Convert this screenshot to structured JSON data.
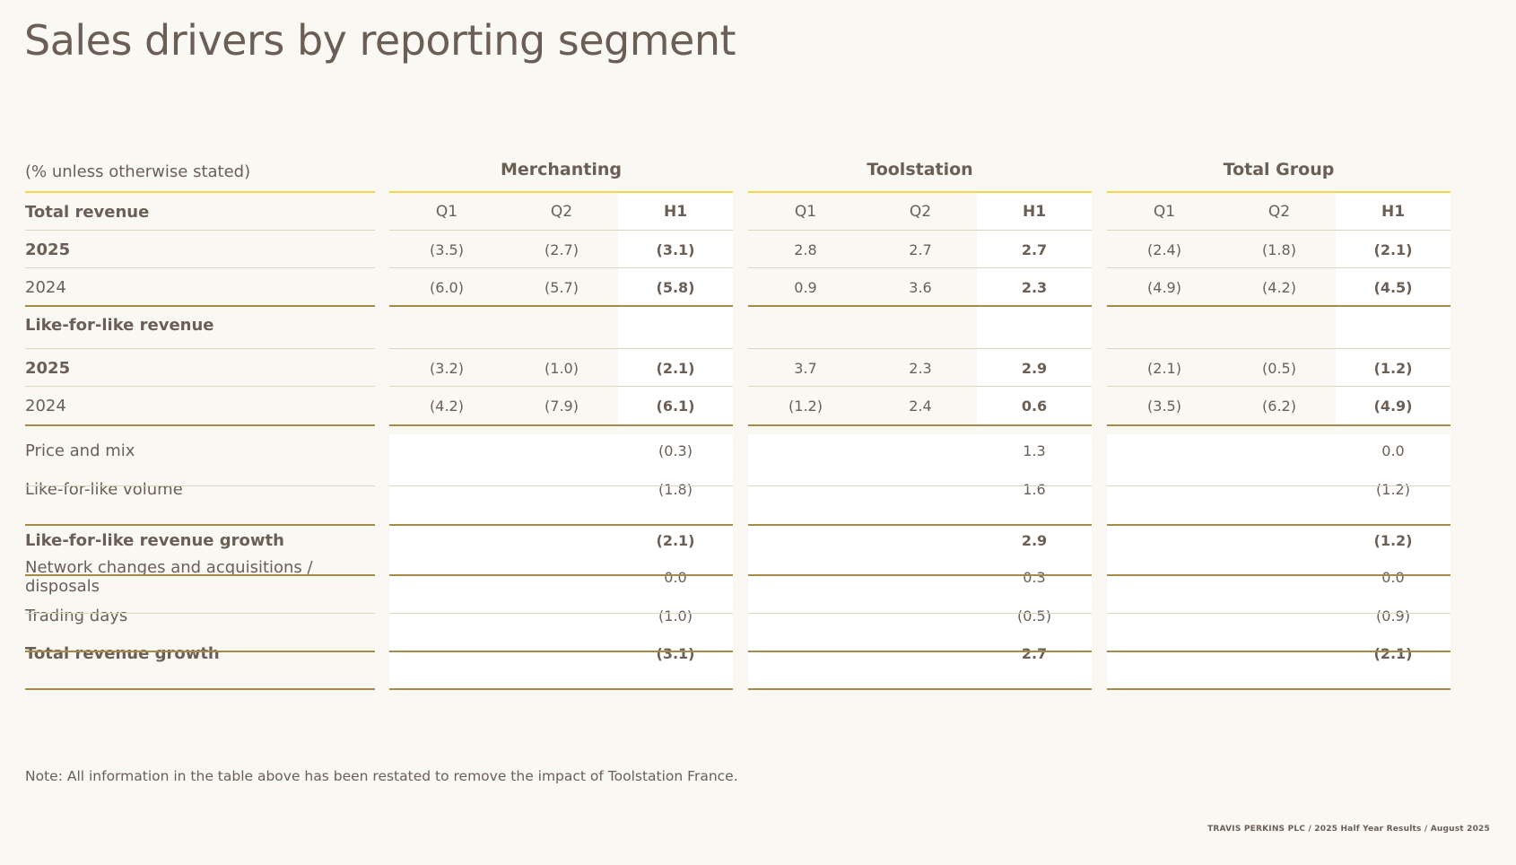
{
  "title": "Sales drivers by reporting segment",
  "units_note": "(% unless otherwise stated)",
  "segments": [
    "Merchanting",
    "Toolstation",
    "Total Group"
  ],
  "periods": [
    "Q1",
    "Q2",
    "H1"
  ],
  "rows": [
    {
      "label": "Total revenue",
      "bold": true,
      "values": [
        "Q1",
        "Q2",
        "H1",
        "Q1",
        "Q2",
        "H1",
        "Q1",
        "Q2",
        "H1"
      ],
      "header_row": true
    },
    {
      "label": "2025",
      "bold": true,
      "values": [
        "(3.5)",
        "(2.7)",
        "(3.1)",
        "2.8",
        "2.7",
        "2.7",
        "(2.4)",
        "(1.8)",
        "(2.1)"
      ]
    },
    {
      "label": "2024",
      "bold": false,
      "values": [
        "(6.0)",
        "(5.7)",
        "(5.8)",
        "0.9",
        "3.6",
        "2.3",
        "(4.9)",
        "(4.2)",
        "(4.5)"
      ]
    },
    {
      "label": "Like-for-like revenue",
      "bold": true,
      "values": [
        "",
        "",
        "",
        "",
        "",
        "",
        "",
        "",
        ""
      ]
    },
    {
      "label": "2025",
      "bold": true,
      "values": [
        "(3.2)",
        "(1.0)",
        "(2.1)",
        "3.7",
        "2.3",
        "2.9",
        "(2.1)",
        "(0.5)",
        "(1.2)"
      ]
    },
    {
      "label": "2024",
      "bold": false,
      "values": [
        "(4.2)",
        "(7.9)",
        "(6.1)",
        "(1.2)",
        "2.4",
        "0.6",
        "(3.5)",
        "(6.2)",
        "(4.9)"
      ]
    },
    {
      "label": "Price and mix",
      "bold": false,
      "values": [
        "",
        "",
        "(0.3)",
        "",
        "",
        "1.3",
        "",
        "",
        "0.0"
      ]
    },
    {
      "label": "Like-for-like volume",
      "bold": false,
      "values": [
        "",
        "",
        "(1.8)",
        "",
        "",
        "1.6",
        "",
        "",
        "(1.2)"
      ]
    },
    {
      "label": "Like-for-like revenue growth",
      "bold": true,
      "values": [
        "",
        "",
        "(2.1)",
        "",
        "",
        "2.9",
        "",
        "",
        "(1.2)"
      ]
    },
    {
      "label": "Network changes and acquisitions / disposals",
      "bold": false,
      "values": [
        "",
        "",
        "0.0",
        "",
        "",
        "0.3",
        "",
        "",
        "0.0"
      ]
    },
    {
      "label": "Trading days",
      "bold": false,
      "values": [
        "",
        "",
        "(1.0)",
        "",
        "",
        "(0.5)",
        "",
        "",
        "(0.9)"
      ]
    },
    {
      "label": "Total revenue growth",
      "bold": true,
      "values": [
        "",
        "",
        "(3.1)",
        "",
        "",
        "2.7",
        "",
        "",
        "(2.1)"
      ]
    }
  ],
  "note": "Note: All information in the table above has been restated to remove the impact of Toolstation France.",
  "footer": "TRAVIS PERKINS PLC / 2025 Half Year Results / August 2025",
  "colors": {
    "text": "#6b5f55",
    "background": "#f9f8f3",
    "accent_yellow": "#f6d54b",
    "rule_gold": "#a68a4a"
  }
}
